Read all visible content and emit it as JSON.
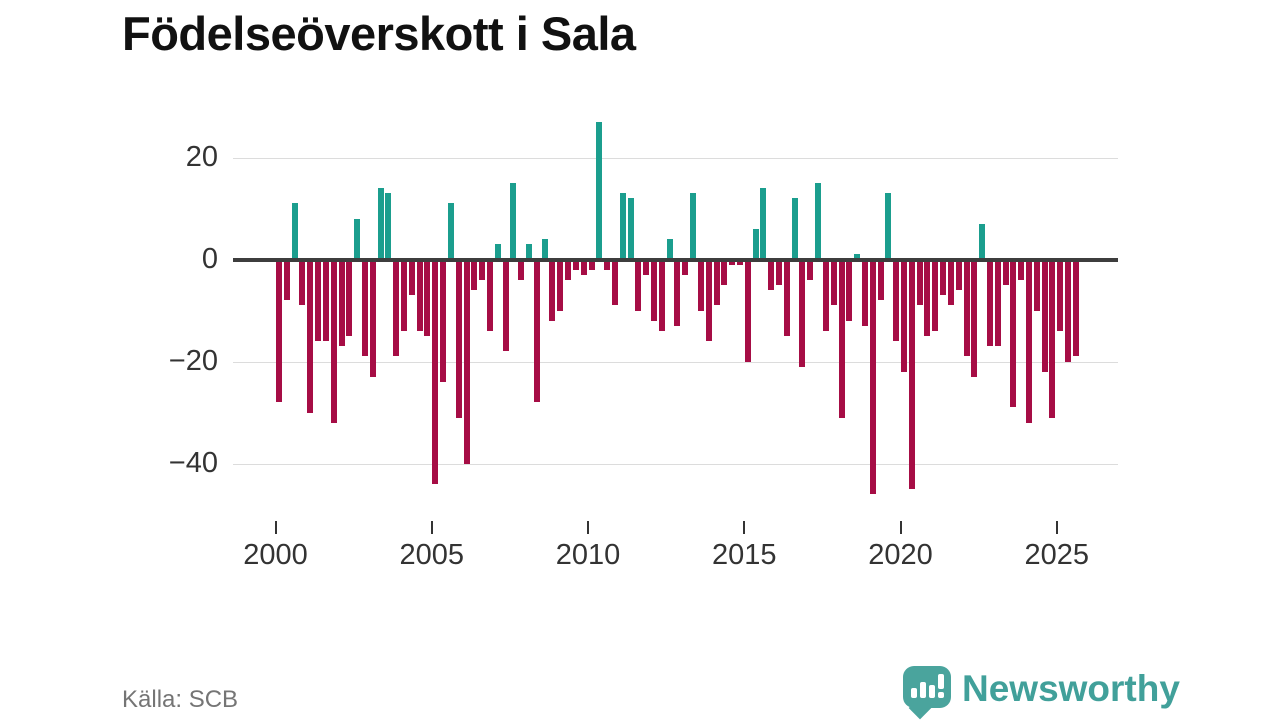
{
  "title": "Födelseöverskott i Sala",
  "source": "Källa: SCB",
  "branding": {
    "name": "Newsworthy",
    "icon": "bar-chart-speech-bubble-icon"
  },
  "colors": {
    "positive_bar": "#1b9e8e",
    "negative_bar": "#a60d45",
    "zero_axis": "#3d3d3d",
    "gridline": "#dcdcdc",
    "tick_text": "#333333",
    "title_text": "#111111",
    "source_text": "#757575",
    "brand_teal": "#41a09a"
  },
  "chart_data": {
    "type": "bar",
    "title": "Födelseöverskott i Sala",
    "xlabel": "",
    "ylabel": "",
    "frequency": "quarterly",
    "start_period": "2000Q1",
    "end_period": "2025Q3",
    "x_tick_years": [
      2000,
      2005,
      2010,
      2015,
      2020,
      2025
    ],
    "x_tick_labels": [
      "2000",
      "2005",
      "2010",
      "2015",
      "2020",
      "2025"
    ],
    "y_ticks": [
      20,
      0,
      -20,
      -40
    ],
    "y_tick_labels": [
      "20",
      "0",
      "−20",
      "−40"
    ],
    "ylim": [
      -48,
      30
    ],
    "grid": true,
    "legend": false,
    "values": [
      -28,
      -8,
      11,
      -9,
      -30,
      -16,
      -16,
      -32,
      -17,
      -15,
      8,
      -19,
      -23,
      14,
      13,
      -19,
      -14,
      -7,
      -14,
      -15,
      -44,
      -24,
      11,
      -31,
      -40,
      -6,
      -4,
      -14,
      3,
      -18,
      15,
      -4,
      3,
      -28,
      4,
      -12,
      -10,
      -4,
      -2,
      -3,
      -2,
      27,
      -2,
      -9,
      13,
      12,
      -10,
      -3,
      -12,
      -14,
      4,
      -13,
      -3,
      13,
      -10,
      -16,
      -9,
      -5,
      -1,
      -1,
      -20,
      6,
      14,
      -6,
      -5,
      -15,
      12,
      -21,
      -4,
      15,
      -14,
      -9,
      -31,
      -12,
      1,
      -13,
      -46,
      -8,
      13,
      -16,
      -22,
      -45,
      -9,
      -15,
      -14,
      -7,
      -9,
      -6,
      -19,
      -23,
      7,
      -17,
      -17,
      -5,
      -29,
      -4,
      -32,
      -10,
      -22,
      -31,
      -14,
      -20,
      -19
    ]
  }
}
